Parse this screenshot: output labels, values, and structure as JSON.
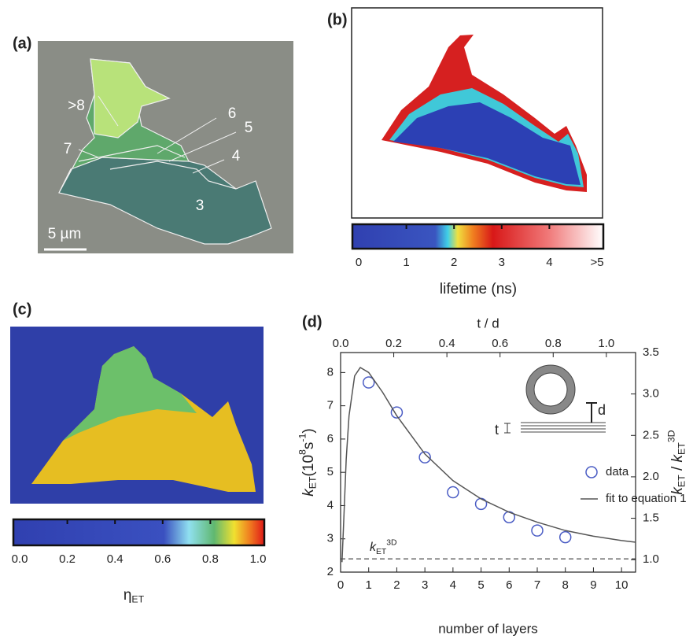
{
  "figure": {
    "panel_a": {
      "label": "(a)",
      "layer_labels": [
        ">8",
        "7",
        "6",
        "5",
        "4",
        "3"
      ],
      "scale_bar": "5 µm"
    },
    "panel_b": {
      "label": "(b)",
      "colorbar_ticks": [
        "0",
        "1",
        "2",
        "3",
        "4",
        ">5"
      ],
      "colorbar_title": "lifetime (ns)"
    },
    "panel_c": {
      "label": "(c)",
      "colorbar_ticks": [
        "0.0",
        "0.2",
        "0.4",
        "0.6",
        "0.8",
        "1.0"
      ],
      "colorbar_title": [
        {
          "text": "η"
        },
        {
          "text": "ET",
          "style": "sub"
        }
      ]
    },
    "panel_d": {
      "label": "(d)",
      "inset_labels": [
        "t",
        "d"
      ]
    }
  },
  "chart_data": {
    "type": "scatter",
    "x_label": "number of layers",
    "x2_label": "t / d",
    "y_label": [
      {
        "text": "k",
        "style": "italic"
      },
      {
        "text": "ET",
        "style": "sub"
      },
      {
        "text": "(10"
      },
      {
        "text": "8",
        "style": "sup"
      },
      {
        "text": "s"
      },
      {
        "text": "-1",
        "style": "sup"
      },
      {
        "text": ")"
      }
    ],
    "y2_label": [
      {
        "text": "k",
        "style": "italic"
      },
      {
        "text": "ET",
        "style": "sub"
      },
      {
        "text": " / "
      },
      {
        "text": "k",
        "style": "italic"
      },
      {
        "text": "ET",
        "style": "sub"
      },
      {
        "text": "3D",
        "style": "sup"
      }
    ],
    "xlim": [
      0,
      10.5
    ],
    "xticks": [
      0,
      1,
      2,
      3,
      4,
      5,
      6,
      7,
      8,
      9,
      10
    ],
    "x2lim": [
      0,
      1.11
    ],
    "x2ticks": [
      {
        "value": 0,
        "label": "0.0"
      },
      0.2,
      0.4,
      0.6,
      0.8,
      {
        "value": 1,
        "label": "1.0"
      }
    ],
    "ylim": [
      2,
      8.6
    ],
    "yticks": [
      2,
      3,
      4,
      5,
      6,
      7,
      8
    ],
    "y2lim": [
      0.85,
      3.5
    ],
    "y2ticks": [
      {
        "value": 1,
        "label": "1.0"
      },
      1.5,
      {
        "value": 2,
        "label": "2.0"
      },
      2.5,
      {
        "value": 3,
        "label": "3.0"
      },
      3.5
    ],
    "series": [
      {
        "name": "data",
        "type": "scatter",
        "color": "#4a5cc4",
        "x": [
          1,
          2,
          3,
          4,
          5,
          6,
          7,
          8
        ],
        "values": [
          7.7,
          6.8,
          5.45,
          4.4,
          4.05,
          3.65,
          3.25,
          3.05
        ]
      },
      {
        "name": "fit to equation 1",
        "type": "line",
        "color": "#555555",
        "x": [
          0.05,
          0.1,
          0.2,
          0.3,
          0.5,
          0.7,
          1,
          1.5,
          2,
          3,
          4,
          5,
          6,
          7,
          8,
          9,
          10,
          10.5
        ],
        "values": [
          2.3,
          3.3,
          5.4,
          6.7,
          7.9,
          8.15,
          8.0,
          7.4,
          6.7,
          5.55,
          4.75,
          4.2,
          3.8,
          3.5,
          3.25,
          3.08,
          2.95,
          2.9
        ]
      }
    ],
    "reference_line": {
      "value": 2.4,
      "style": "dashed",
      "label": [
        {
          "text": "k",
          "style": "italic"
        },
        {
          "text": "ET",
          "style": "sub"
        },
        {
          "text": "3D",
          "style": "sup"
        }
      ]
    }
  }
}
